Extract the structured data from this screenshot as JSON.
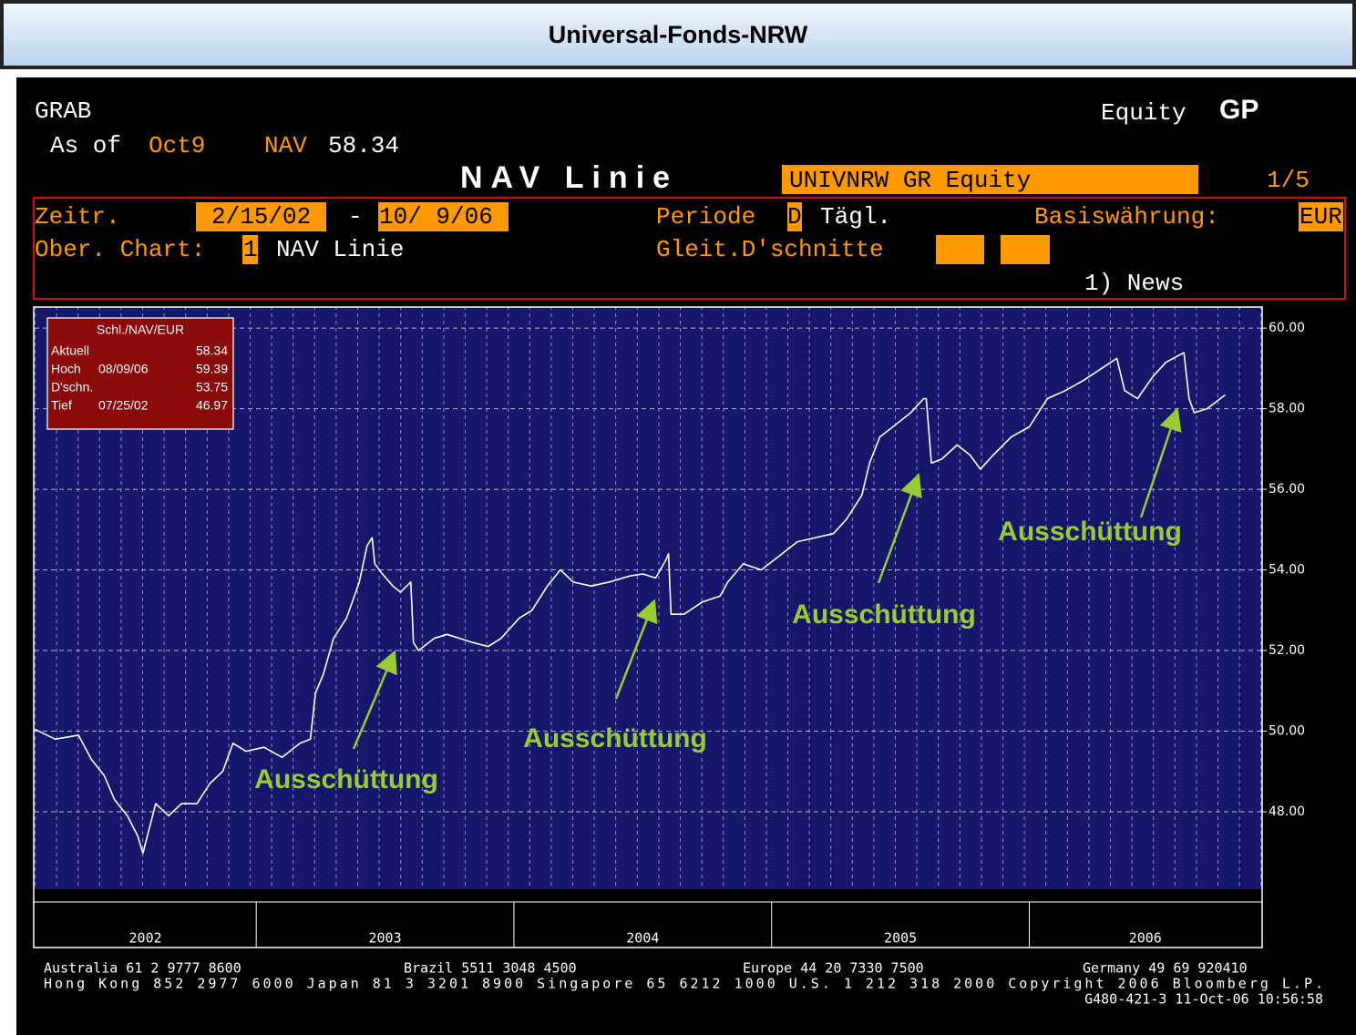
{
  "banner": {
    "title": "Universal-Fonds-NRW"
  },
  "header": {
    "ticker": "GRAB",
    "function": "Equity",
    "function_code": "GP",
    "as_of_label": "As of",
    "as_of_date": "Oct9",
    "nav_label": "NAV",
    "nav_value": "58.34",
    "chart_title": "NAV Linie",
    "security": "UNIVNRW GR Equity",
    "page": "1/5"
  },
  "settings": {
    "range_label": "Zeitr.",
    "range_start": "2/15/02",
    "range_dash": "-",
    "range_end": "10/ 9/06",
    "period_label": "Periode",
    "period_code": "D",
    "period_name": "Tägl.",
    "currency_label": "Basiswährung:",
    "currency": "EUR",
    "upper_chart_label": "Ober. Chart:",
    "upper_chart_code": "1",
    "upper_chart_name": "NAV Linie",
    "moving_avg_label": "Gleit.D'schnitte",
    "news": "1) News"
  },
  "chart_data": {
    "type": "line",
    "color": "#ffffff",
    "x": [
      2002.14,
      2002.22,
      2002.31,
      2002.36,
      2002.41,
      2002.45,
      2002.5,
      2002.54,
      2002.56,
      2002.61,
      2002.66,
      2002.71,
      2002.77,
      2002.82,
      2002.87,
      2002.91,
      2002.96,
      2003.03,
      2003.1,
      2003.17,
      2003.21,
      2003.23,
      2003.26,
      2003.3,
      2003.35,
      2003.4,
      2003.43,
      2003.45,
      2003.46,
      2003.49,
      2003.53,
      2003.56,
      2003.6,
      2003.61,
      2003.63,
      2003.69,
      2003.74,
      2003.79,
      2003.84,
      2003.9,
      2003.95,
      2004.02,
      2004.07,
      2004.13,
      2004.18,
      2004.23,
      2004.3,
      2004.37,
      2004.45,
      2004.5,
      2004.55,
      2004.59,
      2004.6,
      2004.61,
      2004.66,
      2004.73,
      2004.8,
      2004.83,
      2004.89,
      2004.96,
      2005.03,
      2005.1,
      2005.17,
      2005.24,
      2005.29,
      2005.35,
      2005.38,
      2005.42,
      2005.49,
      2005.54,
      2005.59,
      2005.6,
      2005.62,
      2005.66,
      2005.72,
      2005.77,
      2005.81,
      2005.86,
      2005.93,
      2006.0,
      2006.07,
      2006.14,
      2006.21,
      2006.28,
      2006.34,
      2006.37,
      2006.42,
      2006.48,
      2006.53,
      2006.6,
      2006.62,
      2006.64,
      2006.69,
      2006.76
    ],
    "values": [
      50.05,
      49.8,
      49.9,
      49.3,
      48.9,
      48.3,
      47.9,
      47.4,
      46.97,
      48.2,
      47.9,
      48.2,
      48.2,
      48.7,
      49.0,
      49.7,
      49.5,
      49.6,
      49.35,
      49.7,
      49.8,
      50.95,
      51.4,
      52.3,
      52.8,
      53.7,
      54.6,
      54.8,
      54.15,
      53.9,
      53.6,
      53.45,
      53.7,
      52.2,
      52.0,
      52.3,
      52.4,
      52.3,
      52.2,
      52.1,
      52.3,
      52.8,
      53.0,
      53.6,
      54.0,
      53.7,
      53.6,
      53.7,
      53.85,
      53.9,
      53.8,
      54.25,
      54.4,
      52.9,
      52.9,
      53.2,
      53.35,
      53.7,
      54.15,
      54.0,
      54.35,
      54.7,
      54.8,
      54.9,
      55.25,
      55.85,
      56.65,
      57.3,
      57.65,
      57.9,
      58.25,
      58.25,
      56.65,
      56.75,
      57.1,
      56.85,
      56.5,
      56.85,
      57.3,
      57.55,
      58.25,
      58.45,
      58.7,
      59.0,
      59.25,
      58.45,
      58.25,
      58.8,
      59.15,
      59.39,
      58.25,
      57.9,
      58.0,
      58.34
    ],
    "xlim": [
      2002.14,
      2006.9
    ],
    "xticks": [
      2002,
      2003,
      2004,
      2005,
      2006
    ],
    "ylim": [
      46.1,
      60.5
    ],
    "yticks": [
      {
        "value": 48,
        "label": "48.00"
      },
      {
        "value": 50,
        "label": "50.00"
      },
      {
        "value": 52,
        "label": "52.00"
      },
      {
        "value": 54,
        "label": "54.00"
      },
      {
        "value": 56,
        "label": "56.00"
      },
      {
        "value": 58,
        "label": "58.00"
      },
      {
        "value": 60,
        "label": "60.00"
      }
    ],
    "grid": true,
    "stats_box": {
      "title": "Schl./NAV/EUR",
      "rows": [
        {
          "label": "Aktuell",
          "value": "58.34"
        },
        {
          "label": "Hoch",
          "date": "08/09/06",
          "value": "59.39"
        },
        {
          "label": "D'schn.",
          "value": "53.75"
        },
        {
          "label": "Tief",
          "date": "07/25/02",
          "value": "46.97"
        }
      ]
    },
    "annotations": [
      "Ausschüttung",
      "Ausschüttung",
      "Ausschüttung",
      "Ausschüttung"
    ]
  },
  "footer": {
    "line1": [
      "Australia 61 2 9777 8600",
      "Brazil 5511 3048 4500",
      "Europe 44 20 7330 7500",
      "Germany 49 69 920410"
    ],
    "line2": "Hong Kong 852 2977 6000 Japan 81 3 3201 8900 Singapore 65 6212 1000 U.S. 1 212 318 2000 Copyright 2006 Bloomberg L.P.",
    "line3": "G480-421-3 11-Oct-06 10:56:58"
  }
}
